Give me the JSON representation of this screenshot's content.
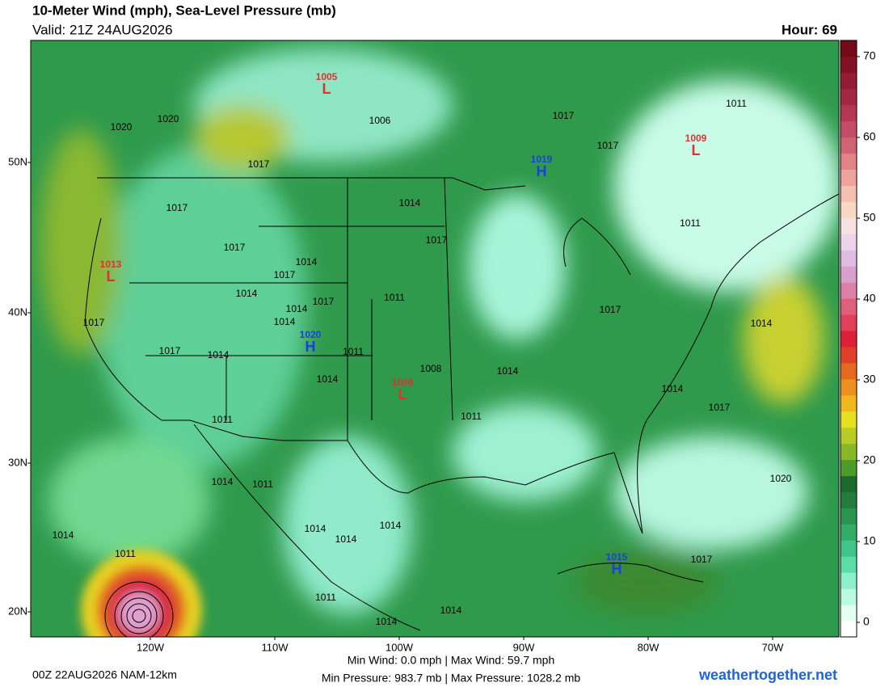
{
  "header": {
    "title": "10-Meter Wind (mph), Sea-Level Pressure (mb)",
    "valid": "Valid: 21Z 24AUG2026",
    "hour": "Hour: 69"
  },
  "latitude_labels": [
    "50N",
    "40N",
    "30N",
    "20N"
  ],
  "longitude_labels": [
    "120W",
    "110W",
    "100W",
    "90W",
    "80W",
    "70W"
  ],
  "pressure_centers": [
    {
      "value": "1005",
      "letter": "L",
      "color": "#e03030"
    },
    {
      "value": "1009",
      "letter": "L",
      "color": "#e03030"
    },
    {
      "value": "1019",
      "letter": "H",
      "color": "#1a3ee0"
    },
    {
      "value": "1013",
      "letter": "L",
      "color": "#e03030"
    },
    {
      "value": "1020",
      "letter": "H",
      "color": "#1a3ee0"
    },
    {
      "value": "1006",
      "letter": "L",
      "color": "#e03030"
    },
    {
      "value": "1015",
      "letter": "H",
      "color": "#1a3ee0"
    }
  ],
  "isobar_labels": [
    "1020",
    "1020",
    "1017",
    "1017",
    "1017",
    "1017",
    "1014",
    "1014",
    "1014",
    "1017",
    "1014",
    "1014",
    "1017",
    "1017",
    "1011",
    "1011",
    "1008",
    "1014",
    "1014",
    "1017",
    "1006",
    "1017",
    "1017",
    "1011",
    "1011",
    "1017",
    "1014",
    "1014",
    "1014",
    "1017",
    "1011",
    "1011",
    "1014",
    "1011",
    "1020",
    "1014",
    "1011",
    "1014",
    "1014",
    "1014",
    "1017",
    "1011",
    "1014",
    "1014"
  ],
  "colorbar": {
    "ticks": [
      0,
      10,
      20,
      30,
      40,
      50,
      60,
      70
    ],
    "colors": [
      "#ffffff",
      "#e4fff2",
      "#b8fbe2",
      "#8cf0cc",
      "#5cdca8",
      "#40c488",
      "#32ac68",
      "#2a9450",
      "#227c3c",
      "#1c6a30",
      "#4e9a2a",
      "#88b828",
      "#b8cc28",
      "#e6e020",
      "#f0b820",
      "#ec9020",
      "#e46a20",
      "#e04028",
      "#dc2038",
      "#e0405c",
      "#e0607c",
      "#dc80a8",
      "#d8a0cc",
      "#e0bce0",
      "#ecd4ec",
      "#f6e2e0",
      "#f8d8c4",
      "#f4c0b0",
      "#eea49c",
      "#e08488",
      "#d06474",
      "#c44c64",
      "#b43854",
      "#a42844",
      "#941c34",
      "#841226",
      "#740a18"
    ]
  },
  "footer": {
    "run": "00Z 22AUG2026 NAM-12km",
    "wind": "Min Wind:  0.0 mph | Max Wind: 59.7 mph",
    "pressure": "Min Pressure: 983.7 mb | Max Pressure: 1028.2 mb",
    "site": "weathertogether.net"
  }
}
